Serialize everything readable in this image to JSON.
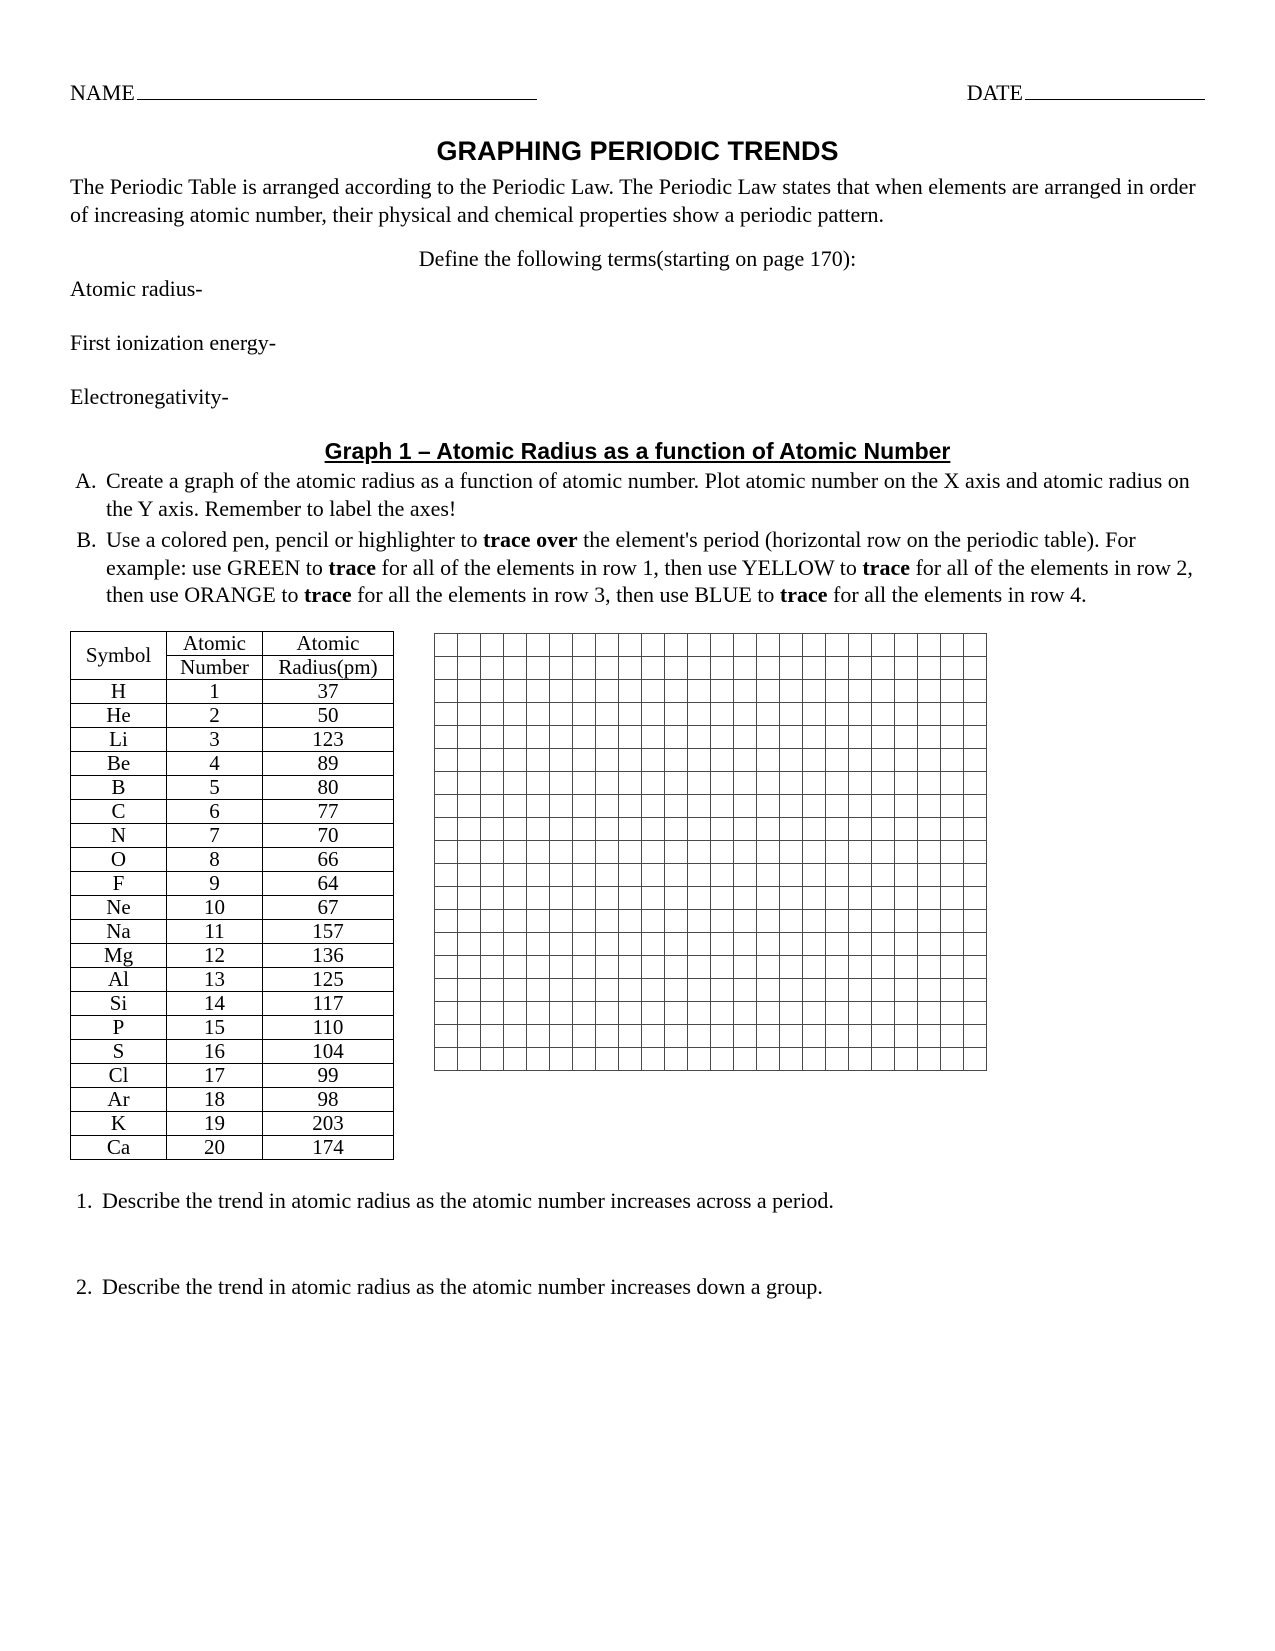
{
  "header": {
    "name_label": "NAME",
    "date_label": "DATE"
  },
  "title": "GRAPHING PERIODIC TRENDS",
  "intro": "The Periodic Table is arranged according to the Periodic Law. The Periodic Law states that when elements are arranged in order of increasing atomic number, their physical and chemical properties show a periodic pattern.",
  "define_instruction": "Define the following terms(starting on page 170):",
  "terms": [
    "Atomic radius-",
    "First ionization energy-",
    "Electronegativity-"
  ],
  "graph1": {
    "title": "Graph 1 – Atomic Radius as a function of Atomic Number",
    "instructions": [
      "Create a graph of the atomic radius as a function of atomic number. Plot atomic number on the X axis and atomic radius on the Y axis.  Remember to label the axes!",
      "Use a colored pen, pencil or highlighter to <b>trace over</b> the element's period (horizontal row on the periodic table).  For example: use GREEN to <b>trace</b> for all of the elements in row 1, then use YELLOW to <b>trace</b> for all of the elements in row 2, then use ORANGE to <b>trace</b> for all the elements in row 3, then use BLUE to <b>trace</b> for all the elements in row 4."
    ]
  },
  "table": {
    "headers": {
      "symbol": "Symbol",
      "atomic_number_1": "Atomic",
      "atomic_number_2": "Number",
      "atomic_radius_1": "Atomic",
      "atomic_radius_2": "Radius(pm)"
    },
    "rows": [
      {
        "symbol": "H",
        "num": "1",
        "radius": "37"
      },
      {
        "symbol": "He",
        "num": "2",
        "radius": "50"
      },
      {
        "symbol": "Li",
        "num": "3",
        "radius": "123"
      },
      {
        "symbol": "Be",
        "num": "4",
        "radius": "89"
      },
      {
        "symbol": "B",
        "num": "5",
        "radius": "80"
      },
      {
        "symbol": "C",
        "num": "6",
        "radius": "77"
      },
      {
        "symbol": "N",
        "num": "7",
        "radius": "70"
      },
      {
        "symbol": "O",
        "num": "8",
        "radius": "66"
      },
      {
        "symbol": "F",
        "num": "9",
        "radius": "64"
      },
      {
        "symbol": "Ne",
        "num": "10",
        "radius": "67"
      },
      {
        "symbol": "Na",
        "num": "11",
        "radius": "157"
      },
      {
        "symbol": "Mg",
        "num": "12",
        "radius": "136"
      },
      {
        "symbol": "Al",
        "num": "13",
        "radius": "125"
      },
      {
        "symbol": "Si",
        "num": "14",
        "radius": "117"
      },
      {
        "symbol": "P",
        "num": "15",
        "radius": "110"
      },
      {
        "symbol": "S",
        "num": "16",
        "radius": "104"
      },
      {
        "symbol": "Cl",
        "num": "17",
        "radius": "99"
      },
      {
        "symbol": "Ar",
        "num": "18",
        "radius": "98"
      },
      {
        "symbol": "K",
        "num": "19",
        "radius": "203"
      },
      {
        "symbol": "Ca",
        "num": "20",
        "radius": "174"
      }
    ]
  },
  "grid": {
    "cols": 24,
    "rows": 19
  },
  "questions": [
    "Describe the trend in atomic radius as the atomic number increases across a period.",
    "Describe the trend in atomic radius as the atomic number increases down a group."
  ]
}
